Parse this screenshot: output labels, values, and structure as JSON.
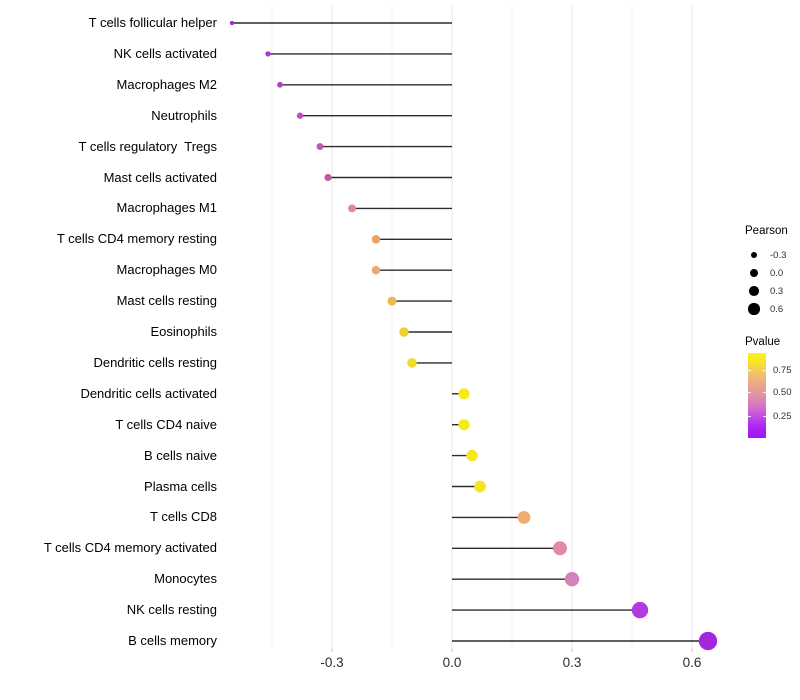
{
  "chart_data": {
    "type": "scatter",
    "variant": "lollipop",
    "orientation": "horizontal",
    "title": "",
    "xlabel": "",
    "ylabel": "",
    "x_axis": {
      "tick_values": [
        -0.3,
        0.0,
        0.3,
        0.6
      ],
      "tick_labels": [
        "-0.3",
        "0.0",
        "0.3",
        "0.6"
      ],
      "range": [
        -0.61,
        0.71
      ],
      "major_gridlines": [
        -0.3,
        0.0,
        0.3,
        0.6
      ],
      "minor_gridlines": [
        -0.45,
        -0.15,
        0.15,
        0.45
      ],
      "grid": true
    },
    "points": [
      {
        "label": "T cells follicular helper",
        "pearson": -0.55,
        "color": "#9C2BD5"
      },
      {
        "label": "NK cells activated",
        "pearson": -0.46,
        "color": "#AE38D0"
      },
      {
        "label": "Macrophages M2",
        "pearson": -0.43,
        "color": "#B440CA"
      },
      {
        "label": "Neutrophils",
        "pearson": -0.38,
        "color": "#BC4AC2"
      },
      {
        "label": "T cells regulatory  Tregs",
        "pearson": -0.33,
        "color": "#C455AE"
      },
      {
        "label": "Mast cells activated",
        "pearson": -0.31,
        "color": "#C757A4"
      },
      {
        "label": "Macrophages M1",
        "pearson": -0.25,
        "color": "#DE8B8E"
      },
      {
        "label": "T cells CD4 memory resting",
        "pearson": -0.19,
        "color": "#EBA266"
      },
      {
        "label": "Macrophages M0",
        "pearson": -0.19,
        "color": "#EDAA6E"
      },
      {
        "label": "Mast cells resting",
        "pearson": -0.15,
        "color": "#EABB52"
      },
      {
        "label": "Eosinophils",
        "pearson": -0.12,
        "color": "#EED02F"
      },
      {
        "label": "Dendritic cells resting",
        "pearson": -0.1,
        "color": "#F1DA28"
      },
      {
        "label": "Dendritic cells activated",
        "pearson": 0.03,
        "color": "#F6EB13"
      },
      {
        "label": "T cells CD4 naive",
        "pearson": 0.03,
        "color": "#F6EB13"
      },
      {
        "label": "B cells naive",
        "pearson": 0.05,
        "color": "#F5E719"
      },
      {
        "label": "Plasma cells",
        "pearson": 0.07,
        "color": "#F4E31D"
      },
      {
        "label": "T cells CD8",
        "pearson": 0.18,
        "color": "#EFAD72"
      },
      {
        "label": "T cells CD4 memory activated",
        "pearson": 0.27,
        "color": "#E289A6"
      },
      {
        "label": "Monocytes",
        "pearson": 0.3,
        "color": "#D482B8"
      },
      {
        "label": "NK cells resting",
        "pearson": 0.47,
        "color": "#B23ADF"
      },
      {
        "label": "B cells memory",
        "pearson": 0.64,
        "color": "#A326DC"
      }
    ],
    "legend_pearson": {
      "title": "Pearson",
      "entries": [
        "-0.3",
        "0.0",
        "0.3",
        "0.6"
      ],
      "dot_color": "#000000"
    },
    "legend_pvalue": {
      "title": "Pvalue",
      "tick_labels": [
        "0.75",
        "0.50",
        "0.25"
      ],
      "gradient_top_to_bottom": [
        "#FDF413",
        "#F8E032",
        "#F1C169",
        "#E9A58A",
        "#E292A6",
        "#D573C6",
        "#C14BE4",
        "#AC23F2",
        "#A214F8"
      ]
    }
  },
  "colors": {
    "background": "#ffffff",
    "stem": "#2B2B2B",
    "grid_major": "#EBEBEB",
    "grid_minor": "#F5F5F5",
    "axis_tick": "#C9C9C9",
    "axis_text": "#2e2e2e",
    "category_text": "#000000"
  }
}
